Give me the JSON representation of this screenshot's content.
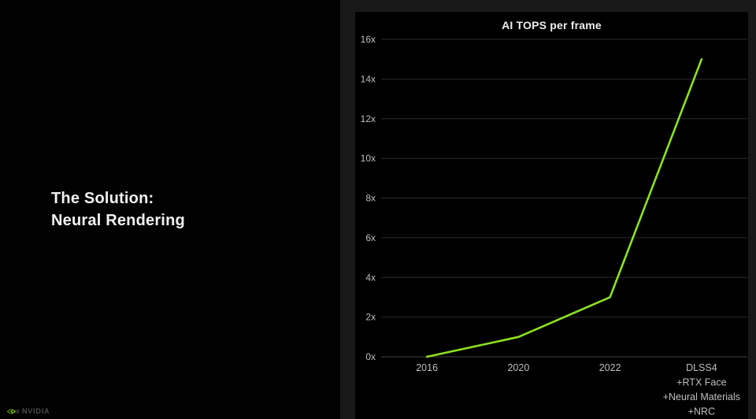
{
  "slide": {
    "title_line1": "The Solution:",
    "title_line2": "Neural Rendering"
  },
  "footer": {
    "brand": "NVIDIA",
    "logo_icon": "nvidia-eye-icon"
  },
  "colors": {
    "left_bg": "#020202",
    "right_panel_bg": "#191919",
    "chart_bg": "#000000",
    "line_green": "#8de11f",
    "nvidia_green": "#76b900",
    "gridline": "#2c2c2c",
    "axis_line": "#434343",
    "tick_label": "#bfbfbf",
    "title_text": "#ececec"
  },
  "chart_data": {
    "type": "line",
    "title": "AI TOPS per frame",
    "categories": [
      [
        "2016"
      ],
      [
        "2020"
      ],
      [
        "2022"
      ],
      [
        "DLSS4",
        "+RTX Face",
        "+Neural Materials",
        "+NRC"
      ]
    ],
    "values": [
      0,
      1,
      3,
      15
    ],
    "y_ticks": [
      "0x",
      "2x",
      "4x",
      "6x",
      "8x",
      "10x",
      "12x",
      "14x",
      "16x"
    ],
    "y_tick_values": [
      0,
      2,
      4,
      6,
      8,
      10,
      12,
      14,
      16
    ],
    "ylim": [
      0,
      16
    ],
    "xlabel": "",
    "ylabel": "",
    "grid": true,
    "legend": "none",
    "line_color": "#8de11f"
  }
}
